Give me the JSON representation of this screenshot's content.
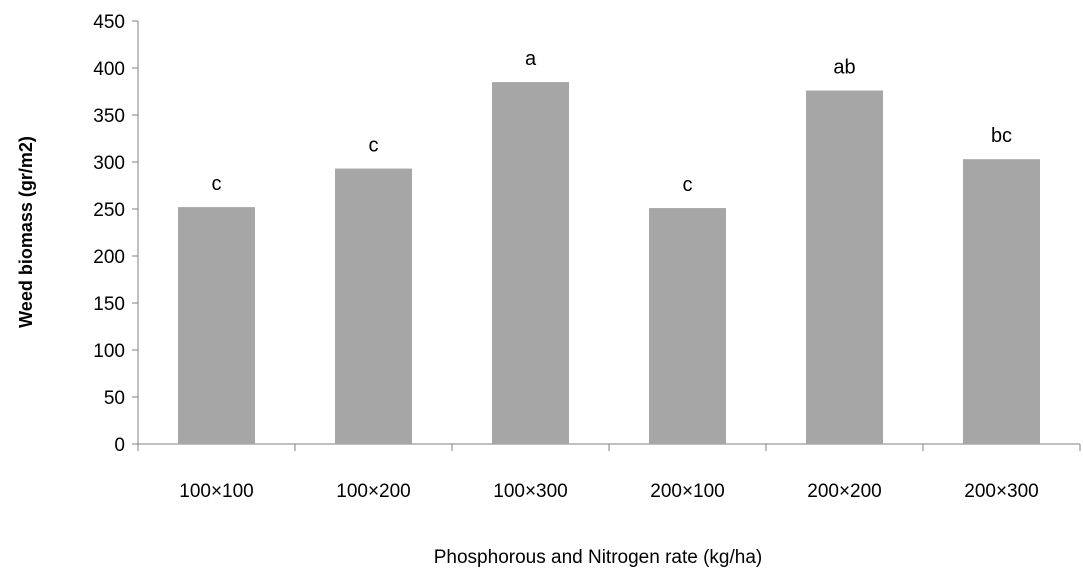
{
  "chart_data": {
    "type": "bar",
    "title": "",
    "xlabel": "Phosphorous and Nitrogen rate (kg/ha)",
    "ylabel": "Weed biomass (gr/m2)",
    "ylim": [
      0,
      450
    ],
    "yticks": [
      0,
      50,
      100,
      150,
      200,
      250,
      300,
      350,
      400,
      450
    ],
    "categories": [
      "100×100",
      "100×200",
      "100×300",
      "200×100",
      "200×200",
      "200×300"
    ],
    "values": [
      252,
      293,
      385,
      251,
      376,
      303
    ],
    "group_labels": [
      "c",
      "c",
      "a",
      "c",
      "ab",
      "bc"
    ],
    "bar_color": "#a6a6a6",
    "grid": false,
    "legend": "none"
  }
}
